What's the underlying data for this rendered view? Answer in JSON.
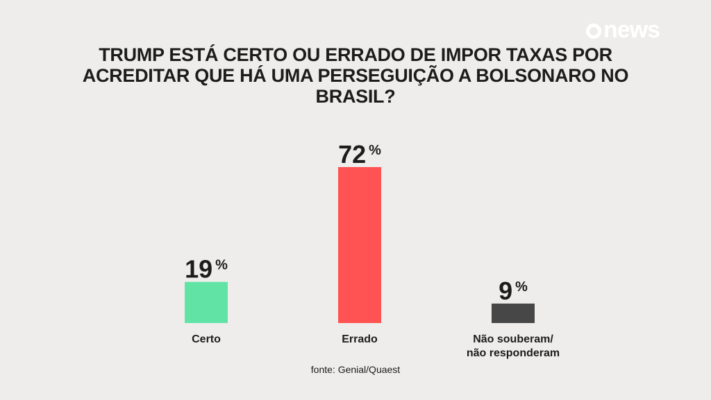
{
  "logo": {
    "text": "news"
  },
  "source": "fonte: Genial/Quaest",
  "chart_data": {
    "type": "bar",
    "title": "TRUMP ESTÁ CERTO OU ERRADO DE IMPOR TAXAS POR ACREDITAR QUE HÁ UMA PERSEGUIÇÃO A BOLSONARO NO BRASIL?",
    "categories": [
      "Certo",
      "Errado",
      "Não souberam/ não responderam"
    ],
    "values": [
      19,
      72,
      9
    ],
    "value_labels": [
      "19",
      "72",
      "9"
    ],
    "unit": "%",
    "colors": [
      "#62e3a6",
      "#ff5252",
      "#474747"
    ],
    "ylim": [
      0,
      72
    ],
    "grid": false
  }
}
